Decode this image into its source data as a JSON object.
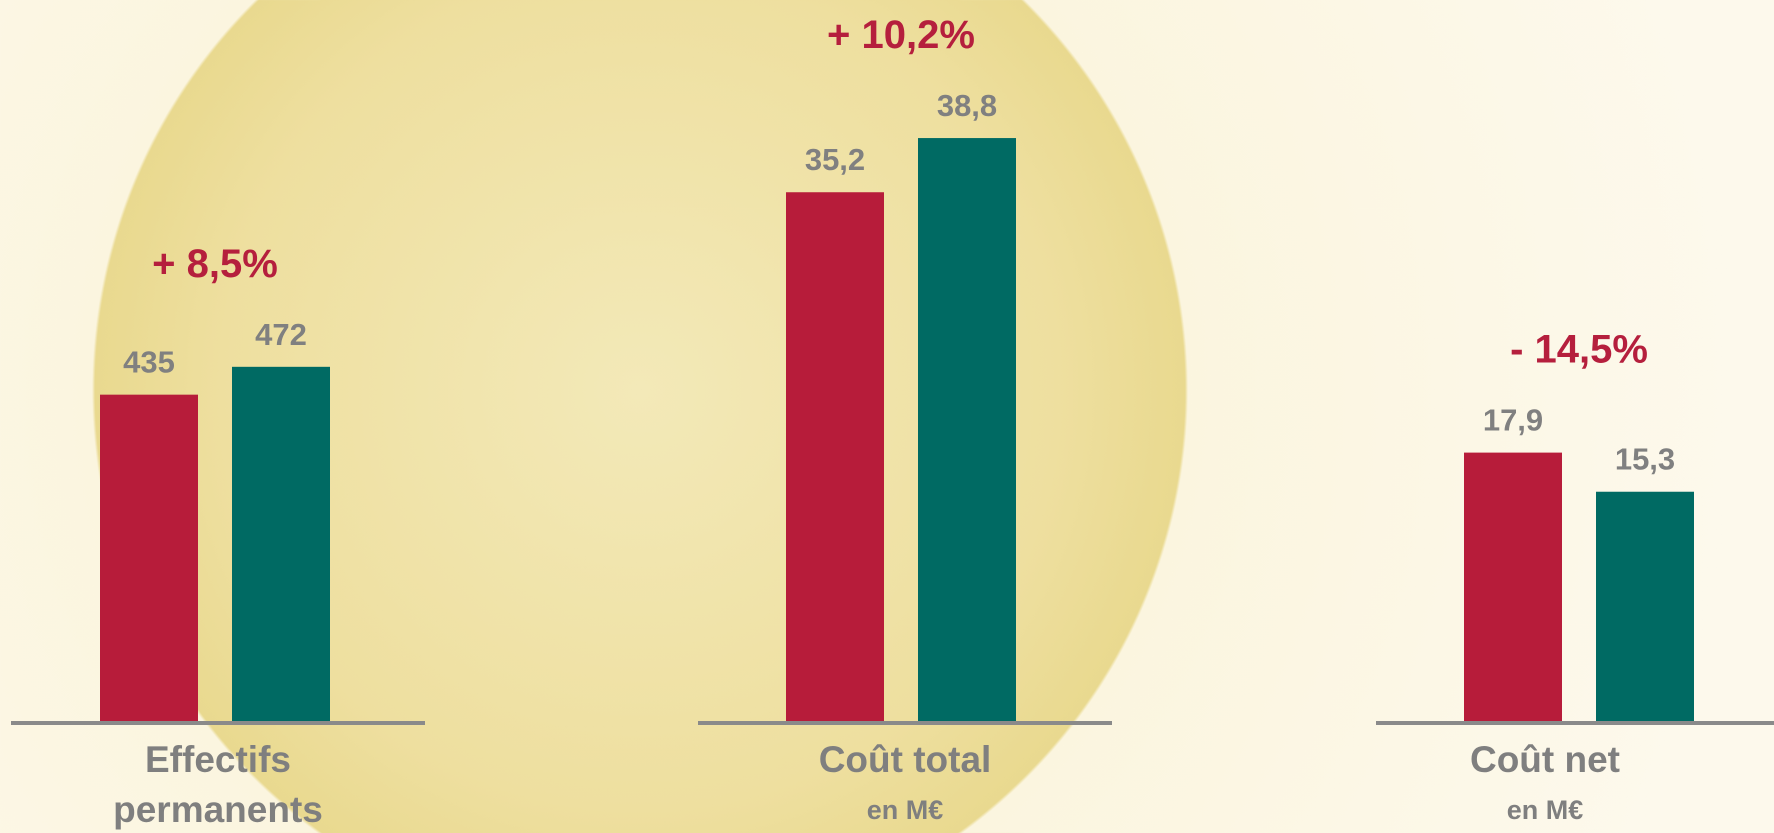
{
  "chart_data": [
    {
      "type": "bar",
      "title": "Effectifs permanents",
      "annotation": "+ 8,5%",
      "values": [
        435,
        472
      ],
      "colors": [
        "#b71c3a",
        "#006a63"
      ],
      "ylim": [
        0,
        800
      ]
    },
    {
      "type": "bar",
      "title": "Coût total",
      "subtitle": "en M€",
      "annotation": "+ 10,2%",
      "values": [
        35.2,
        38.8
      ],
      "value_labels": [
        "35,2",
        "38,8"
      ],
      "colors": [
        "#b71c3a",
        "#006a63"
      ],
      "ylim": [
        0,
        40
      ]
    },
    {
      "type": "bar",
      "title": "Coût net",
      "subtitle": "en M€",
      "annotation": "- 14,5%",
      "values": [
        17.9,
        15.3
      ],
      "value_labels": [
        "17,9",
        "15,3"
      ],
      "colors": [
        "#b71c3a",
        "#006a63"
      ],
      "ylim": [
        0,
        40
      ]
    }
  ]
}
